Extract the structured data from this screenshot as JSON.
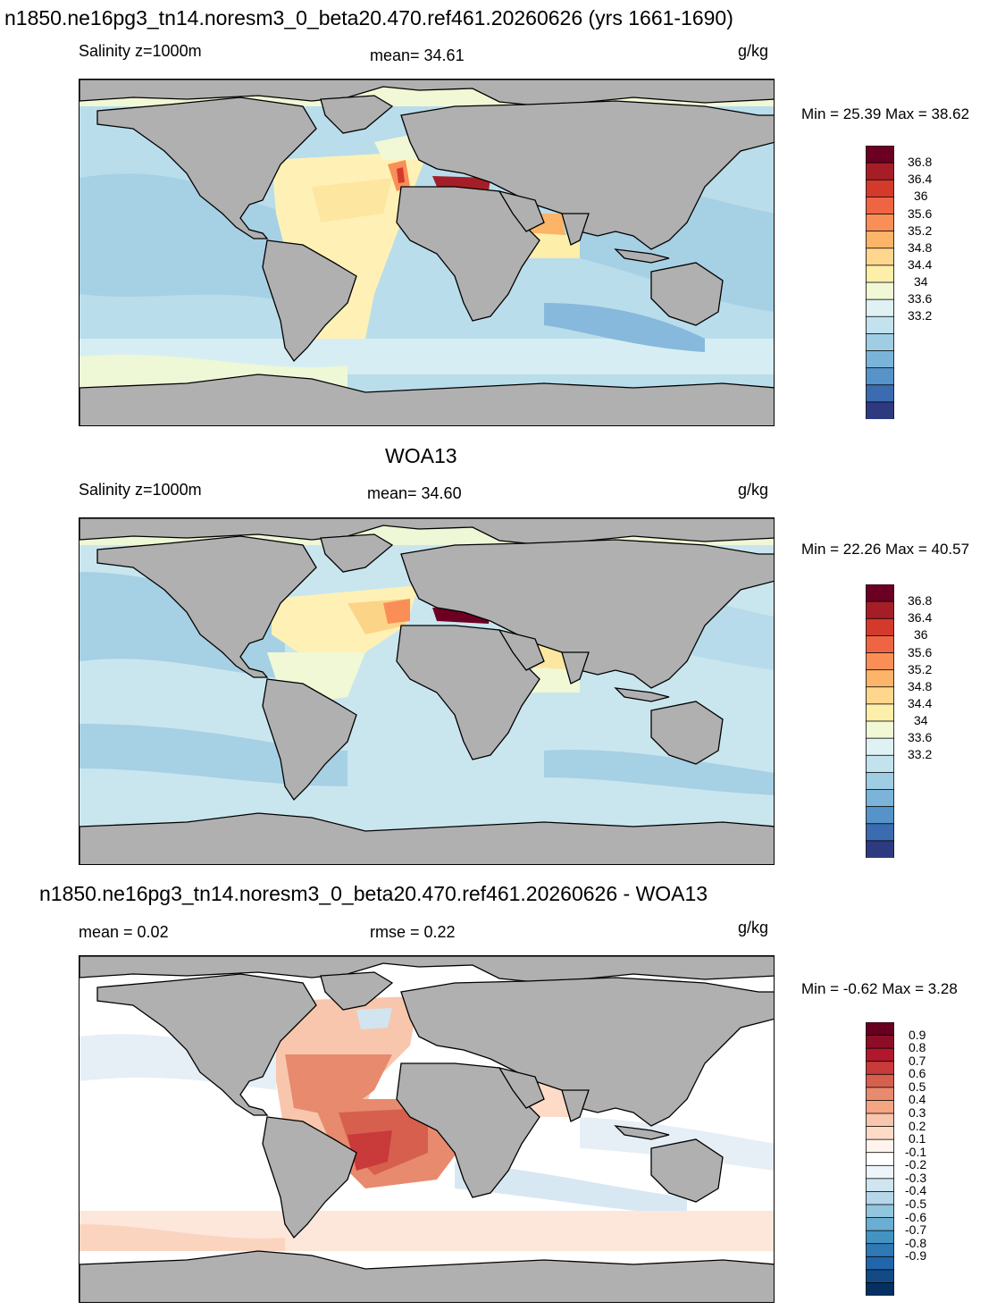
{
  "panels": [
    {
      "title": "n1850.ne16pg3_tn14.noresm3_0_beta20.470.ref461.20260626 (yrs 1661-1690)",
      "left_label": "Salinity z=1000m",
      "center_label": "mean=  34.61",
      "units": "g/kg",
      "minmax": "Min =  25.39 Max =  38.62",
      "colorbar": {
        "labels": [
          "36.8",
          "36.4",
          "36",
          "35.6",
          "35.2",
          "34.8",
          "34.4",
          "34",
          "33.6",
          "33.2"
        ],
        "colors": [
          "#6b0023",
          "#a51e27",
          "#d43a2c",
          "#ef6543",
          "#f98f57",
          "#fcb468",
          "#fed68e",
          "#fdeea9",
          "#f1f8d5",
          "#dff1f2",
          "#c2e2ee",
          "#9fcde3",
          "#7bb4d8",
          "#5593c8",
          "#3b6bb0",
          "#2e3a80"
        ]
      }
    },
    {
      "title": "WOA13",
      "left_label": "Salinity z=1000m",
      "center_label": "mean=  34.60",
      "units": "g/kg",
      "minmax": "Min =  22.26 Max =  40.57",
      "colorbar": {
        "labels": [
          "36.8",
          "36.4",
          "36",
          "35.6",
          "35.2",
          "34.8",
          "34.4",
          "34",
          "33.6",
          "33.2"
        ],
        "colors": [
          "#6b0023",
          "#a51e27",
          "#d43a2c",
          "#ef6543",
          "#f98f57",
          "#fcb468",
          "#fed68e",
          "#fdeea9",
          "#f1f8d5",
          "#dff1f2",
          "#c2e2ee",
          "#9fcde3",
          "#7bb4d8",
          "#5593c8",
          "#3b6bb0",
          "#2e3a80"
        ]
      }
    },
    {
      "title": "n1850.ne16pg3_tn14.noresm3_0_beta20.470.ref461.20260626 - WOA13",
      "left_label": "mean =    0.02",
      "center_label": "rmse =    0.22",
      "units": "g/kg",
      "minmax": "Min =  -0.62 Max =    3.28",
      "colorbar": {
        "labels": [
          "0.9",
          "0.8",
          "0.7",
          "0.6",
          "0.5",
          "0.4",
          "0.3",
          "0.2",
          "0.1",
          "-0.1",
          "-0.2",
          "-0.3",
          "-0.4",
          "-0.5",
          "-0.6",
          "-0.7",
          "-0.8",
          "-0.9"
        ],
        "colors": [
          "#67001f",
          "#8e0d26",
          "#b2182b",
          "#c93a3a",
          "#d6604d",
          "#e78a6e",
          "#f4a582",
          "#f8c6ad",
          "#fddbc7",
          "#fff3ed",
          "#ffffff",
          "#eef5fa",
          "#d1e5f0",
          "#b6d6e9",
          "#92c5de",
          "#6aaed3",
          "#4393c3",
          "#2f79b5",
          "#2166ac",
          "#124a86",
          "#053061"
        ]
      }
    }
  ],
  "colors": {
    "land": "#b0b0b0",
    "coast": "#000000"
  }
}
